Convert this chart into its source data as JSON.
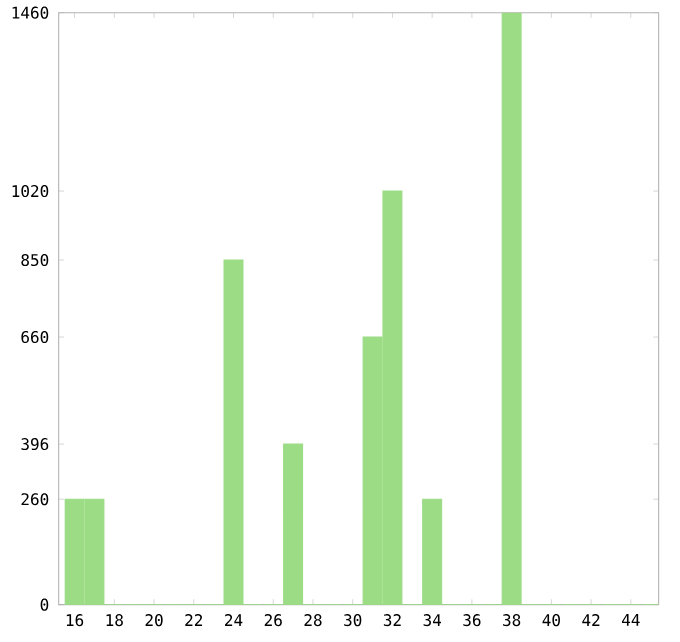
{
  "chart_data": {
    "type": "bar",
    "x": [
      16,
      17,
      18,
      19,
      20,
      21,
      22,
      23,
      24,
      25,
      26,
      27,
      28,
      29,
      30,
      31,
      32,
      33,
      34,
      35,
      36,
      37,
      38,
      39,
      40,
      41,
      42,
      43,
      44,
      45
    ],
    "values": [
      260,
      260,
      0,
      0,
      0,
      0,
      0,
      0,
      850,
      0,
      0,
      396,
      0,
      0,
      0,
      660,
      1020,
      0,
      260,
      0,
      0,
      0,
      1460,
      0,
      0,
      0,
      0,
      0,
      0,
      0
    ],
    "color": "#9bdc85",
    "xlim": [
      15.2,
      45.4
    ],
    "xticks": [
      16,
      18,
      20,
      22,
      24,
      26,
      28,
      30,
      32,
      34,
      36,
      38,
      40,
      42,
      44
    ],
    "ylim": [
      0,
      1460
    ],
    "yticks": [
      0,
      260,
      396,
      660,
      850,
      1020,
      1460
    ],
    "grid": false
  }
}
